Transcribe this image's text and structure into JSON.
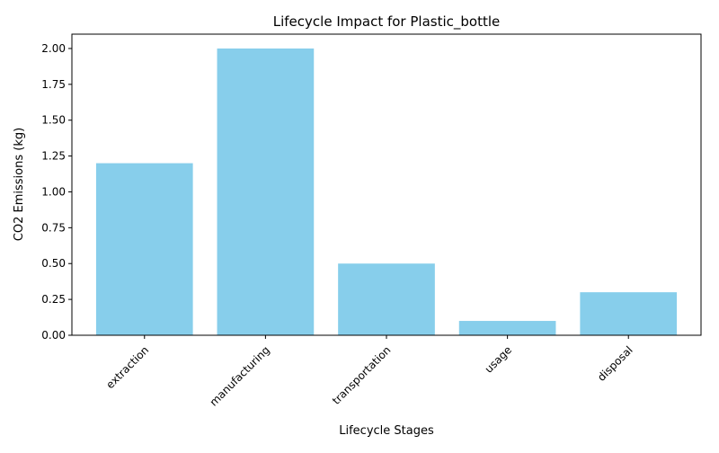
{
  "chart_data": {
    "type": "bar",
    "title": "Lifecycle Impact for Plastic_bottle",
    "xlabel": "Lifecycle Stages",
    "ylabel": "CO2 Emissions (kg)",
    "categories": [
      "extraction",
      "manufacturing",
      "transportation",
      "usage",
      "disposal"
    ],
    "values": [
      1.2,
      2.0,
      0.5,
      0.1,
      0.3
    ],
    "ylim": [
      0,
      2.1
    ],
    "yticks": [
      "0.00",
      "0.25",
      "0.50",
      "0.75",
      "1.00",
      "1.25",
      "1.50",
      "1.75",
      "2.00"
    ],
    "bar_color": "#87ceeb",
    "grid": false,
    "xtick_rotation_deg": 45
  }
}
